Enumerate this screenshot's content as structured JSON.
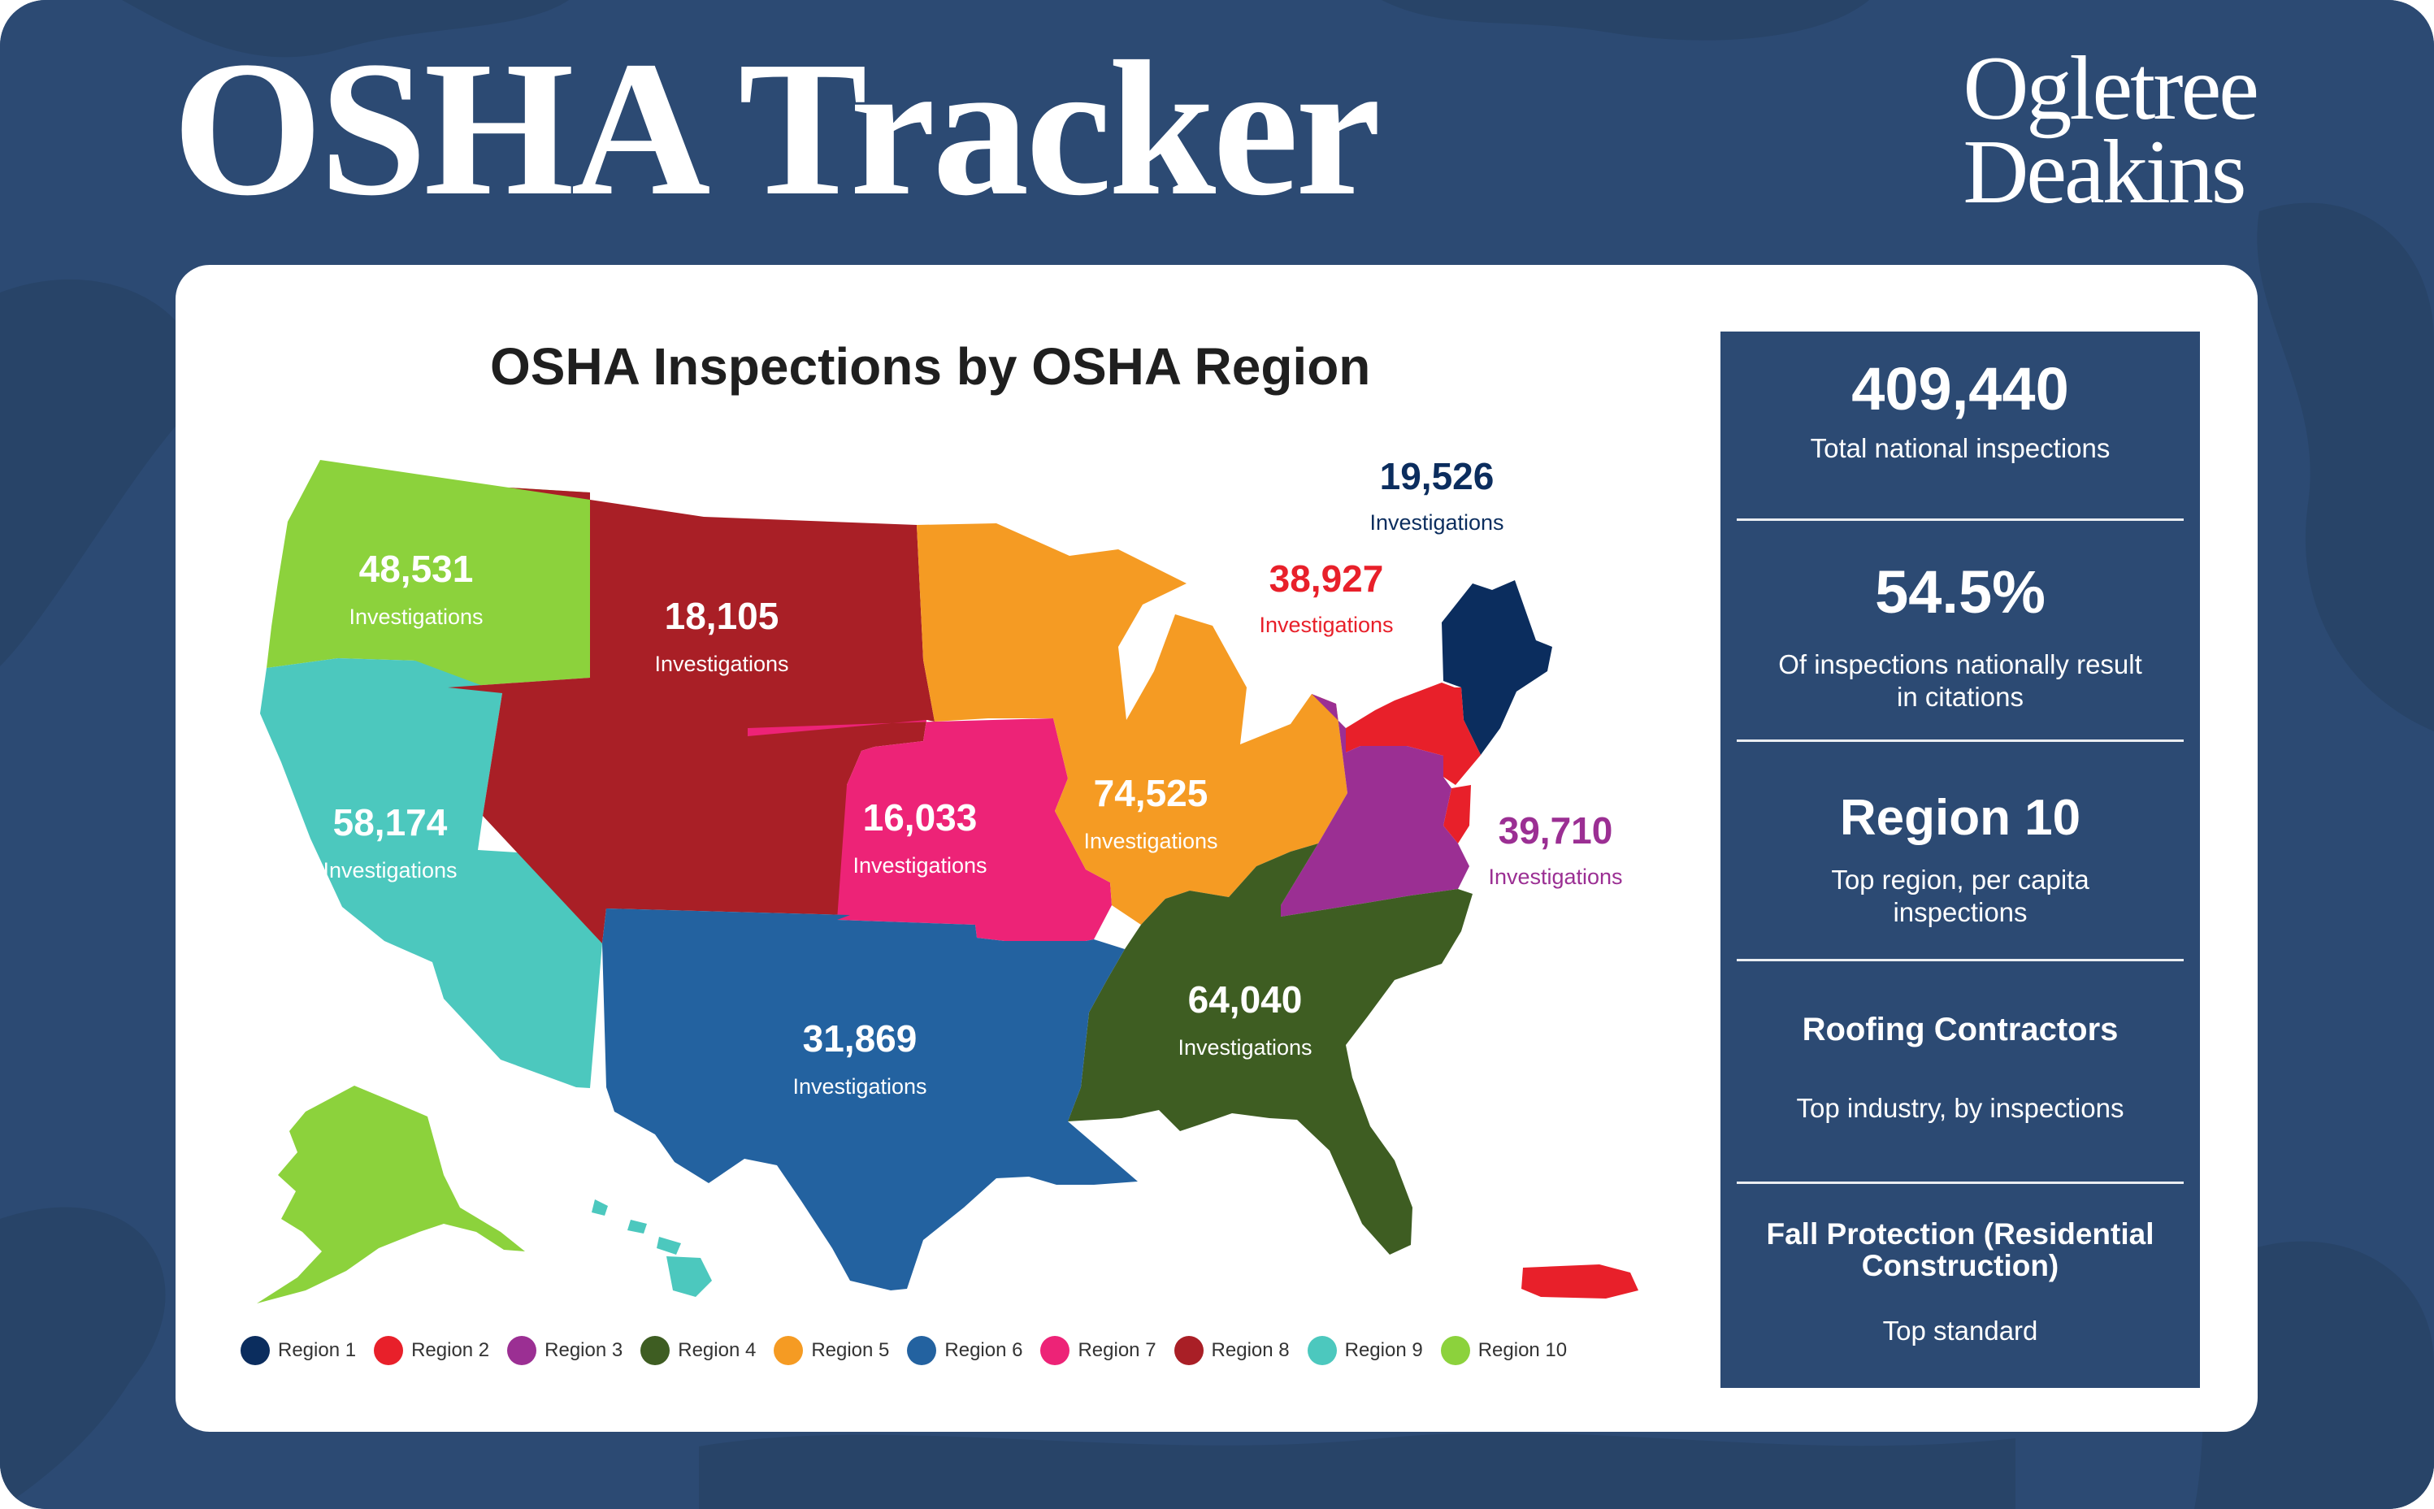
{
  "header": {
    "title": "OSHA Tracker",
    "logo_line1": "Ogletree",
    "logo_line2": "Deakins"
  },
  "map": {
    "title": "OSHA Inspections by OSHA Region",
    "unit": "Investigations",
    "regions": [
      {
        "region": "Region 1",
        "value": "19,526",
        "color": "#0b2d5e"
      },
      {
        "region": "Region 2",
        "value": "38,927",
        "color": "#e8202a"
      },
      {
        "region": "Region 3",
        "value": "39,710",
        "color": "#9b2f93"
      },
      {
        "region": "Region 4",
        "value": "64,040",
        "color": "#3e5d22"
      },
      {
        "region": "Region 5",
        "value": "74,525",
        "color": "#f59b23"
      },
      {
        "region": "Region 6",
        "value": "31,869",
        "color": "#2362a0"
      },
      {
        "region": "Region 7",
        "value": "16,033",
        "color": "#ed2377"
      },
      {
        "region": "Region 8",
        "value": "18,105",
        "color": "#a91f26"
      },
      {
        "region": "Region 9",
        "value": "58,174",
        "color": "#4cc8be"
      },
      {
        "region": "Region 10",
        "value": "48,531",
        "color": "#8cd23c"
      }
    ]
  },
  "stats": [
    {
      "headline": "409,440",
      "description": "Total national inspections"
    },
    {
      "headline": "54.5%",
      "description": "Of inspections nationally result in citations"
    },
    {
      "headline": "Region 10",
      "description": "Top region, per capita inspections"
    },
    {
      "headline": "Roofing Contractors",
      "description": "Top industry, by inspections"
    },
    {
      "headline": "Fall Protection (Residential Construction)",
      "description": "Top standard"
    }
  ]
}
